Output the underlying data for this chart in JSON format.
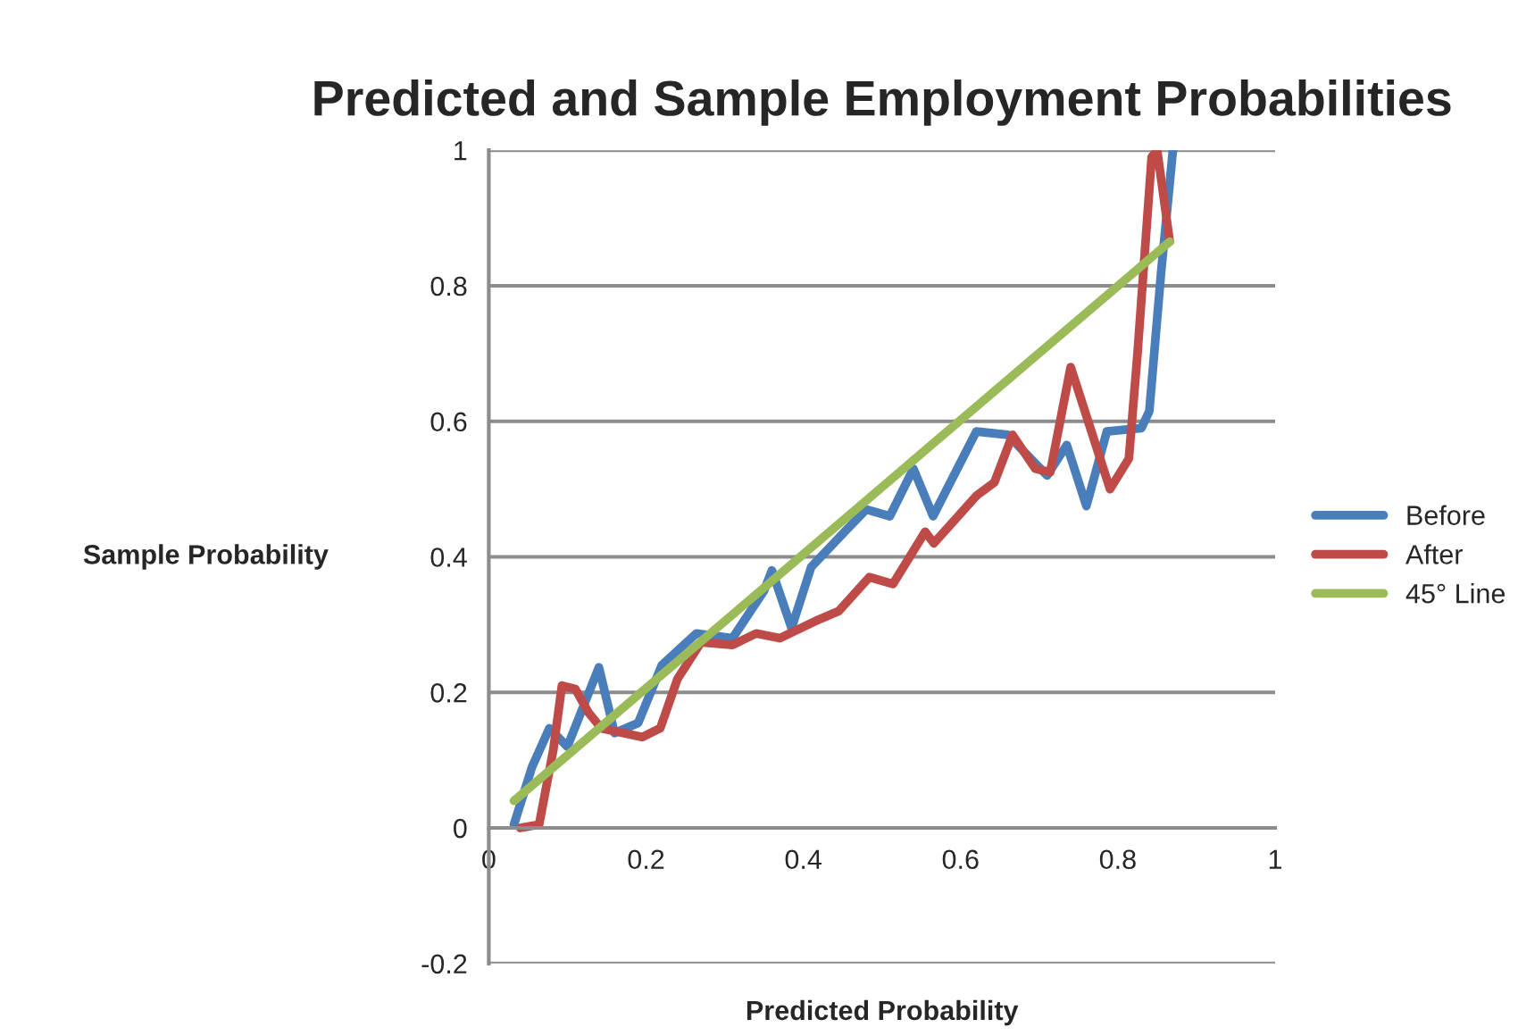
{
  "chart_data": {
    "type": "line",
    "title": "Predicted and Sample Employment Probabilities",
    "xlabel": "Predicted Probability",
    "ylabel": "Sample Probability",
    "xlim": [
      0,
      1
    ],
    "xticks": [
      0,
      0.2,
      0.4,
      0.6,
      0.8,
      1
    ],
    "ylim": [
      -0.2,
      1
    ],
    "yticks": [
      -0.2,
      0,
      0.2,
      0.4,
      0.6,
      0.8,
      1
    ],
    "grid": "y",
    "legend": "right",
    "series": [
      {
        "name": "Before",
        "color": "#4a7ebb",
        "x": [
          0.032,
          0.055,
          0.077,
          0.1,
          0.14,
          0.16,
          0.19,
          0.22,
          0.264,
          0.31,
          0.35,
          0.36,
          0.385,
          0.41,
          0.455,
          0.48,
          0.51,
          0.54,
          0.565,
          0.62,
          0.66,
          0.71,
          0.735,
          0.76,
          0.786,
          0.83,
          0.84,
          0.855,
          0.87
        ],
        "values": [
          0.005,
          0.09,
          0.147,
          0.12,
          0.237,
          0.14,
          0.155,
          0.24,
          0.287,
          0.28,
          0.35,
          0.38,
          0.295,
          0.385,
          0.44,
          0.47,
          0.46,
          0.53,
          0.46,
          0.585,
          0.58,
          0.52,
          0.565,
          0.475,
          0.585,
          0.59,
          0.615,
          0.82,
          1.0
        ]
      },
      {
        "name": "After",
        "color": "#be4b48",
        "x": [
          0.04,
          0.064,
          0.082,
          0.093,
          0.11,
          0.127,
          0.143,
          0.195,
          0.218,
          0.24,
          0.27,
          0.31,
          0.34,
          0.37,
          0.415,
          0.445,
          0.484,
          0.514,
          0.555,
          0.566,
          0.62,
          0.643,
          0.666,
          0.695,
          0.714,
          0.74,
          0.79,
          0.814,
          0.825,
          0.843,
          0.85,
          0.866
        ],
        "values": [
          0,
          0.005,
          0.115,
          0.21,
          0.205,
          0.17,
          0.147,
          0.134,
          0.147,
          0.22,
          0.274,
          0.27,
          0.287,
          0.28,
          0.305,
          0.32,
          0.37,
          0.36,
          0.437,
          0.42,
          0.49,
          0.51,
          0.58,
          0.53,
          0.525,
          0.68,
          0.5,
          0.545,
          0.7,
          0.99,
          1.0,
          0.865
        ]
      },
      {
        "name": "45° Line",
        "color": "#9bbb59",
        "x": [
          0.032,
          0.866
        ],
        "values": [
          0.04,
          0.865
        ]
      }
    ]
  }
}
